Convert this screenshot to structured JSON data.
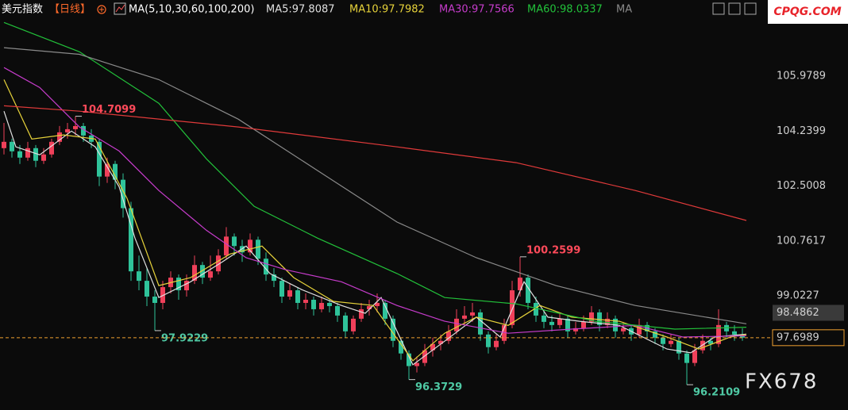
{
  "header": {
    "symbol": "美元指数",
    "period": "【日线】",
    "indicator": "MA(5,10,30,60,100,200)"
  },
  "logo": "CPQG.COM",
  "watermark": "FX678",
  "chart_data": {
    "type": "candlestick",
    "up_color": "#f0405a",
    "down_color": "#2fc39a",
    "xlim": [
      -0.5,
      94.5
    ],
    "ylim": [
      95.41,
      108.39
    ],
    "yticks": [
      99.0227,
      100.7617,
      102.5008,
      104.2399,
      105.9789
    ],
    "candles": [
      [
        103.7,
        104.5,
        103.5,
        103.9
      ],
      [
        103.9,
        104.0,
        103.4,
        103.6
      ],
      [
        103.6,
        103.8,
        103.2,
        103.4
      ],
      [
        103.4,
        103.9,
        103.3,
        103.7
      ],
      [
        103.7,
        103.8,
        103.1,
        103.3
      ],
      [
        103.3,
        103.7,
        103.2,
        103.5
      ],
      [
        103.5,
        104.0,
        103.4,
        103.9
      ],
      [
        103.9,
        104.4,
        103.8,
        104.2
      ],
      [
        104.2,
        104.5,
        104.0,
        104.3
      ],
      [
        104.3,
        104.7099,
        104.1,
        104.4
      ],
      [
        104.4,
        104.5,
        103.9,
        104.1
      ],
      [
        104.1,
        104.3,
        103.7,
        103.9
      ],
      [
        103.9,
        104.0,
        102.5,
        102.8
      ],
      [
        102.8,
        103.4,
        102.6,
        103.2
      ],
      [
        103.2,
        103.3,
        102.4,
        102.7
      ],
      [
        102.7,
        102.9,
        101.5,
        101.8
      ],
      [
        101.8,
        102.0,
        99.5,
        99.8
      ],
      [
        99.8,
        100.3,
        99.2,
        99.5
      ],
      [
        99.5,
        99.9,
        98.7,
        99.0
      ],
      [
        99.0,
        99.2,
        97.9229,
        98.8
      ],
      [
        98.8,
        99.5,
        98.6,
        99.3
      ],
      [
        99.3,
        99.8,
        99.1,
        99.6
      ],
      [
        99.6,
        99.7,
        98.9,
        99.2
      ],
      [
        99.2,
        99.7,
        99.0,
        99.5
      ],
      [
        99.5,
        100.3,
        99.4,
        100.0
      ],
      [
        100.0,
        100.1,
        99.4,
        99.6
      ],
      [
        99.6,
        100.3,
        99.5,
        99.8
      ],
      [
        99.8,
        100.5,
        99.7,
        100.3
      ],
      [
        100.3,
        101.2,
        100.2,
        100.9
      ],
      [
        100.9,
        101.0,
        100.3,
        100.6
      ],
      [
        100.6,
        100.8,
        100.1,
        100.4
      ],
      [
        100.4,
        101.0,
        100.3,
        100.8
      ],
      [
        100.8,
        100.9,
        100.0,
        100.2
      ],
      [
        100.2,
        100.4,
        99.5,
        99.7
      ],
      [
        99.7,
        99.9,
        99.3,
        99.5
      ],
      [
        99.5,
        99.6,
        98.8,
        99.0
      ],
      [
        99.0,
        99.4,
        98.9,
        99.2
      ],
      [
        99.2,
        99.3,
        98.6,
        98.8
      ],
      [
        98.8,
        99.1,
        98.6,
        98.9
      ],
      [
        98.9,
        99.0,
        98.4,
        98.6
      ],
      [
        98.6,
        99.0,
        98.5,
        98.8
      ],
      [
        98.8,
        98.9,
        98.5,
        98.7
      ],
      [
        98.7,
        98.8,
        98.2,
        98.4
      ],
      [
        98.4,
        98.5,
        97.7,
        97.9
      ],
      [
        97.9,
        98.4,
        97.8,
        98.3
      ],
      [
        98.3,
        98.8,
        98.2,
        98.6
      ],
      [
        98.6,
        98.9,
        98.4,
        98.7
      ],
      [
        98.7,
        99.1,
        98.5,
        98.8
      ],
      [
        98.8,
        98.9,
        98.1,
        98.3
      ],
      [
        98.3,
        98.4,
        97.4,
        97.6
      ],
      [
        97.6,
        97.7,
        97.0,
        97.2
      ],
      [
        97.2,
        97.3,
        96.3729,
        96.8
      ],
      [
        96.8,
        97.1,
        96.6,
        96.9
      ],
      [
        96.9,
        97.5,
        96.8,
        97.3
      ],
      [
        97.3,
        97.7,
        97.1,
        97.5
      ],
      [
        97.5,
        97.8,
        97.3,
        97.6
      ],
      [
        97.6,
        98.1,
        97.5,
        97.9
      ],
      [
        97.9,
        98.6,
        97.8,
        98.3
      ],
      [
        98.3,
        98.7,
        98.1,
        98.4
      ],
      [
        98.4,
        98.8,
        98.2,
        98.5
      ],
      [
        98.5,
        98.6,
        97.6,
        97.8
      ],
      [
        97.8,
        97.9,
        97.2,
        97.4
      ],
      [
        97.4,
        97.8,
        97.3,
        97.6
      ],
      [
        97.6,
        98.3,
        97.5,
        98.1
      ],
      [
        98.1,
        99.5,
        98.0,
        99.2
      ],
      [
        99.2,
        100.2599,
        99.0,
        99.6
      ],
      [
        99.6,
        99.7,
        98.6,
        98.8
      ],
      [
        98.8,
        99.0,
        98.2,
        98.4
      ],
      [
        98.4,
        98.6,
        98.0,
        98.2
      ],
      [
        98.2,
        98.4,
        97.9,
        98.1
      ],
      [
        98.1,
        98.5,
        98.0,
        98.3
      ],
      [
        98.3,
        98.4,
        97.7,
        97.9
      ],
      [
        97.9,
        98.2,
        97.8,
        98.0
      ],
      [
        98.0,
        98.4,
        97.9,
        98.2
      ],
      [
        98.2,
        98.7,
        98.1,
        98.5
      ],
      [
        98.5,
        98.6,
        97.9,
        98.1
      ],
      [
        98.1,
        98.5,
        98.0,
        98.3
      ],
      [
        98.3,
        98.4,
        97.7,
        97.9
      ],
      [
        97.9,
        98.2,
        97.8,
        98.0
      ],
      [
        98.0,
        98.1,
        97.6,
        97.8
      ],
      [
        97.8,
        98.3,
        97.7,
        98.1
      ],
      [
        98.1,
        98.2,
        97.7,
        97.9
      ],
      [
        97.9,
        98.0,
        97.5,
        97.7
      ],
      [
        97.7,
        97.8,
        97.3,
        97.5
      ],
      [
        97.5,
        97.8,
        97.4,
        97.6
      ],
      [
        97.6,
        97.7,
        97.0,
        97.2
      ],
      [
        97.2,
        97.3,
        96.2109,
        96.9
      ],
      [
        96.9,
        97.5,
        96.8,
        97.3
      ],
      [
        97.3,
        97.8,
        97.2,
        97.6
      ],
      [
        97.6,
        97.7,
        97.3,
        97.5
      ],
      [
        97.5,
        98.6,
        97.4,
        98.1
      ],
      [
        98.1,
        98.2,
        97.7,
        97.9
      ],
      [
        97.9,
        98.1,
        97.6,
        97.8
      ],
      [
        97.8,
        98.0,
        97.6,
        97.6989
      ]
    ],
    "series": [
      {
        "name": "MA5:97.8087",
        "color": "#e0e0e0",
        "x": [
          0,
          1.5,
          4.5,
          8.5,
          11.5,
          14.5,
          16.5,
          19.5,
          23.5,
          27.5,
          30.5,
          33.5,
          37.5,
          42.5,
          45.5,
          47.5,
          51.5,
          55.5,
          59.5,
          62.5,
          65.5,
          68.5,
          72.5,
          77.5,
          83.5,
          86.5,
          89.5,
          93.5
        ],
        "values": [
          104.87,
          103.74,
          103.49,
          104.24,
          103.74,
          102.48,
          100.85,
          98.97,
          99.47,
          100.1,
          100.6,
          99.73,
          99.22,
          98.72,
          98.47,
          98.97,
          96.84,
          97.59,
          98.35,
          97.72,
          99.47,
          98.35,
          98.22,
          98.09,
          97.34,
          97.22,
          97.72,
          97.81
        ]
      },
      {
        "name": "MA10:97.7982",
        "color": "#e6d23a",
        "x": [
          0,
          3.5,
          7.5,
          11.5,
          15.5,
          19.5,
          23.5,
          28.5,
          32.5,
          36.5,
          41.5,
          46.5,
          51.5,
          55.5,
          59.5,
          63.5,
          67.5,
          71.5,
          77.5,
          83.5,
          87.5,
          91.5,
          93.5
        ],
        "values": [
          105.87,
          103.99,
          104.12,
          103.99,
          102.11,
          99.35,
          99.6,
          100.35,
          100.6,
          99.6,
          98.85,
          98.72,
          96.97,
          97.84,
          98.35,
          98.09,
          98.72,
          98.35,
          98.22,
          97.72,
          97.34,
          97.72,
          97.8
        ]
      },
      {
        "name": "MA30:97.7566",
        "color": "#c63ccb",
        "x": [
          0,
          4.5,
          9.5,
          14.5,
          19.5,
          25.5,
          30.5,
          35.5,
          42.5,
          49.5,
          55.5,
          63.5,
          71.5,
          79.5,
          85.5,
          93.5
        ],
        "values": [
          106.25,
          105.62,
          104.37,
          103.61,
          102.36,
          101.1,
          100.23,
          99.85,
          99.47,
          98.72,
          98.22,
          97.84,
          97.97,
          98.09,
          97.72,
          97.76
        ]
      },
      {
        "name": "MA60:98.0337",
        "color": "#22c13a",
        "x": [
          0,
          9.5,
          19.5,
          25.5,
          31.5,
          39.5,
          49.5,
          55.5,
          64.5,
          74.5,
          84.5,
          93.5
        ],
        "values": [
          107.68,
          106.75,
          105.12,
          103.36,
          101.86,
          100.85,
          99.73,
          98.97,
          98.77,
          98.22,
          97.97,
          98.03
        ]
      },
      {
        "name": "MA",
        "color": "#8a8a8a",
        "x": [
          0,
          9.5,
          19.5,
          29.5,
          39.5,
          49.5,
          59.5,
          69.5,
          79.5,
          93.5
        ],
        "values": [
          106.88,
          106.67,
          105.87,
          104.62,
          102.99,
          101.36,
          100.23,
          99.35,
          98.72,
          98.14
        ]
      },
      {
        "color": "#e03a3a",
        "x": [
          0,
          9.5,
          29.5,
          49.5,
          64.5,
          79.5,
          93.5
        ],
        "values": [
          105.04,
          104.87,
          104.37,
          103.74,
          103.24,
          102.36,
          101.41
        ]
      }
    ],
    "annotations": [
      {
        "x": 9,
        "value": 104.7099,
        "color": "#ff4a5a"
      },
      {
        "x": 19,
        "value": 97.9229,
        "color": "#4fc9a4"
      },
      {
        "x": 51,
        "value": 96.3729,
        "color": "#4fc9a4"
      },
      {
        "x": 65,
        "value": 100.2599,
        "color": "#ff4a5a"
      },
      {
        "x": 86,
        "value": 96.2109,
        "color": "#4fc9a4"
      }
    ],
    "price_markers": [
      {
        "value": 98.4862,
        "color": "#3a3a3a"
      },
      {
        "value": 97.6989,
        "color": "#f0a030",
        "dashed_line": true
      }
    ]
  }
}
